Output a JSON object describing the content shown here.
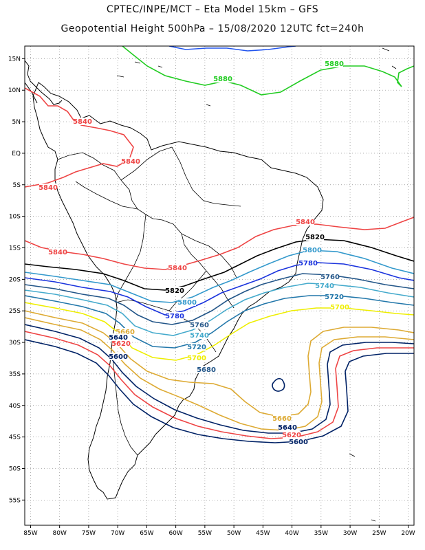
{
  "header": {
    "line1": "CPTEC/INPE/MCT –  Eta Model 15km – GFS",
    "line2": "Geopotential Height 500hPa – 15/08/2020 12UTC fct=240h"
  },
  "axes": {
    "lat_ticks": [
      "15N",
      "10N",
      "5N",
      "EQ",
      "5S",
      "10S",
      "15S",
      "20S",
      "25S",
      "30S",
      "35S",
      "40S",
      "45S",
      "50S",
      "55S"
    ],
    "lon_ticks": [
      "85W",
      "80W",
      "75W",
      "70W",
      "65W",
      "60W",
      "55W",
      "50W",
      "45W",
      "40W",
      "35W",
      "30W",
      "25W",
      "20W"
    ],
    "lat_range": [
      17,
      -59
    ],
    "lon_range": [
      -86,
      -19
    ],
    "grid": "dotted"
  },
  "colors": {
    "c5880": "#22cc22",
    "c5860": "#2255ee",
    "c5840": "#ee4444",
    "c5820": "#000000",
    "c5800": "#3399cc",
    "c5780": "#1a33dd",
    "c5760": "#225588",
    "c5740": "#44aacc",
    "c5720": "#2277aa",
    "c5700": "#eeee00",
    "c5680": "#ddaa33",
    "c5600": "#002266",
    "coast": "#000000"
  },
  "contour_labels": [
    {
      "id": "l5880a",
      "text": "5880"
    },
    {
      "id": "l5880b",
      "text": "5880"
    },
    {
      "id": "l5840a",
      "text": "5840"
    },
    {
      "id": "l5840b",
      "text": "5840"
    },
    {
      "id": "l5840c",
      "text": "5840"
    },
    {
      "id": "l5840d",
      "text": "5840"
    },
    {
      "id": "l5840e",
      "text": "5840"
    },
    {
      "id": "l5840f",
      "text": "5840"
    },
    {
      "id": "l5820a",
      "text": "5820"
    },
    {
      "id": "l5820b",
      "text": "5820"
    },
    {
      "id": "l5800a",
      "text": "5800"
    },
    {
      "id": "l5800b",
      "text": "5800"
    },
    {
      "id": "l5780a",
      "text": "5780"
    },
    {
      "id": "l5780b",
      "text": "5780"
    },
    {
      "id": "l5760a",
      "text": "5760"
    },
    {
      "id": "l5760b",
      "text": "5760"
    },
    {
      "id": "l5740a",
      "text": "5740"
    },
    {
      "id": "l5740b",
      "text": "5740"
    },
    {
      "id": "l5720a",
      "text": "5720"
    },
    {
      "id": "l5720b",
      "text": "5720"
    },
    {
      "id": "l5700a",
      "text": "5700"
    },
    {
      "id": "l5700b",
      "text": "5700"
    },
    {
      "id": "l5680a",
      "text": "5680"
    },
    {
      "id": "l5660a",
      "text": "5660"
    },
    {
      "id": "l5660b",
      "text": "5660"
    },
    {
      "id": "l5640a",
      "text": "5640"
    },
    {
      "id": "l5640b",
      "text": "5640"
    },
    {
      "id": "l5620a",
      "text": "5620"
    },
    {
      "id": "l5620b",
      "text": "5620"
    },
    {
      "id": "l5600a",
      "text": "5600"
    },
    {
      "id": "l5600b",
      "text": "5600"
    }
  ]
}
